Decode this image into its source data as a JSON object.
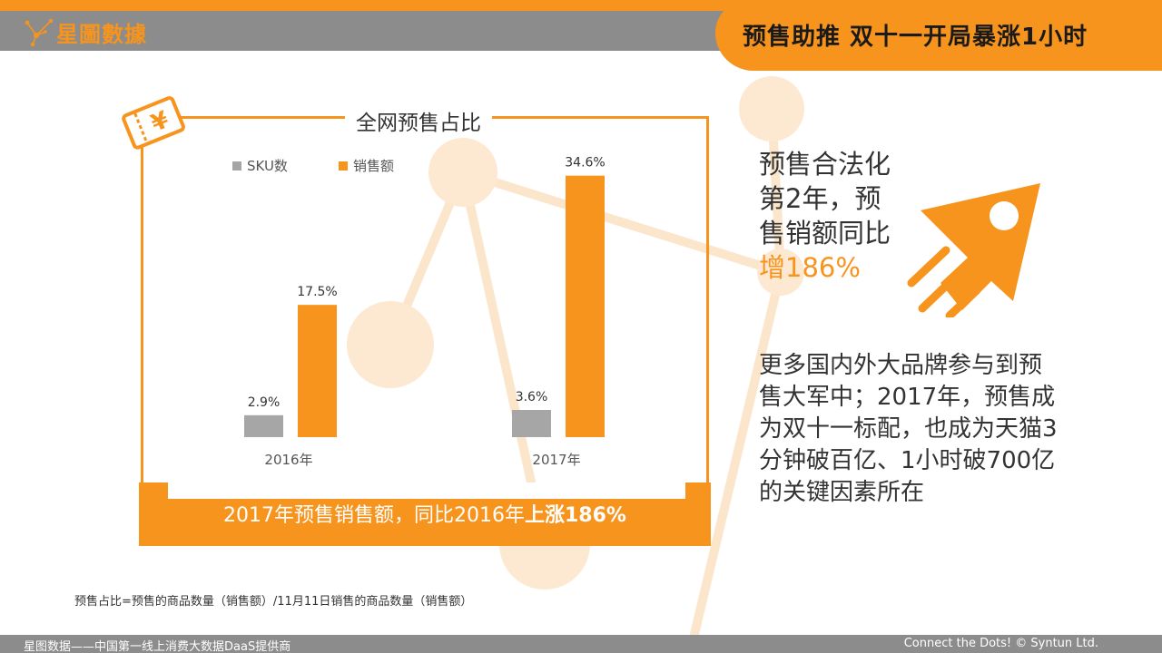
{
  "header": {
    "logo_text": "星圖數據",
    "title": "预售助推  双十一开局暴涨1小时"
  },
  "chart": {
    "title": "全网预售占比",
    "banner_prefix": "2017年预售销售额，同比2016年",
    "banner_emphasis": "上涨186%",
    "footnote": "预售占比=预售的商品数量（销售额）/11月11日销售的商品数量（销售额）"
  },
  "chart_data": {
    "type": "bar",
    "title": "全网预售占比",
    "categories": [
      "2016年",
      "2017年"
    ],
    "series": [
      {
        "name": "SKU数",
        "values": [
          2.9,
          3.6
        ],
        "labels": [
          "2.9%",
          "3.6%"
        ],
        "color": "#a6a6a6"
      },
      {
        "name": "销售额",
        "values": [
          17.5,
          34.6
        ],
        "labels": [
          "17.5%",
          "34.6%"
        ],
        "color": "#f7941d"
      }
    ],
    "ylim": [
      0,
      36
    ],
    "legend": "top-left",
    "grid": false
  },
  "right": {
    "headline_main": "预售合法化第2年，预售销额同比",
    "headline_highlight": "增186%",
    "body": "更多国内外大品牌参与到预售大军中；2017年，预售成为双十一标配，也成为天猫3分钟破百亿、1小时破700亿的关键因素所在"
  },
  "footer": {
    "left": "星图数据——中国第一线上消费大数据DaaS提供商",
    "right": "Connect the Dots! © Syntun Ltd."
  },
  "colors": {
    "accent": "#f7941d",
    "gray": "#8c8c8c",
    "sku_bar": "#a6a6a6"
  },
  "icons": [
    "logo-network-icon",
    "ticket-yen-icon",
    "rocket-icon"
  ]
}
